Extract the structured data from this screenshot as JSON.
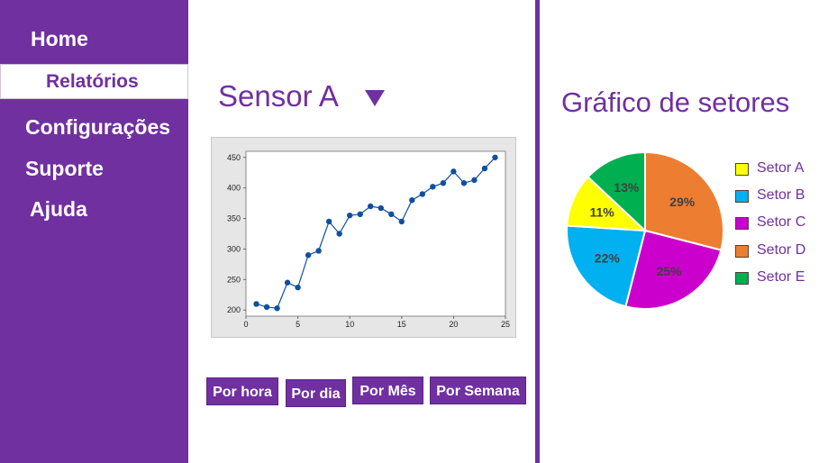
{
  "sidebar": {
    "items": [
      {
        "label": "Home"
      },
      {
        "label": "Relatórios",
        "active": true
      },
      {
        "label": "Configurações"
      },
      {
        "label": "Suporte"
      },
      {
        "label": "Ajuda"
      }
    ],
    "color": "#7030a0"
  },
  "sensor": {
    "title": "Sensor A",
    "dropdown_icon": "triangle-down-icon"
  },
  "period_buttons": [
    "Por hora",
    "Por dia",
    "Por Mês",
    "Por Semana"
  ],
  "pie_section": {
    "title": "Gráfico de setores"
  },
  "chart_data": [
    {
      "type": "line",
      "title": "",
      "xlabel": "",
      "ylabel": "",
      "xlim": [
        0,
        25
      ],
      "ylim": [
        190,
        460
      ],
      "xticks": [
        0,
        5,
        10,
        15,
        20,
        25
      ],
      "yticks": [
        200,
        250,
        300,
        350,
        400,
        450
      ],
      "grid": false,
      "color": "#0f4fa0",
      "x": [
        1,
        2,
        3,
        4,
        5,
        6,
        7,
        8,
        9,
        10,
        11,
        12,
        13,
        14,
        15,
        16,
        17,
        18,
        19,
        20,
        21,
        22,
        23,
        24
      ],
      "y": [
        210,
        205,
        203,
        245,
        237,
        290,
        297,
        345,
        325,
        355,
        357,
        370,
        367,
        357,
        345,
        380,
        390,
        402,
        408,
        427,
        408,
        413,
        432,
        450
      ]
    },
    {
      "type": "pie",
      "title": "",
      "legend_position": "right",
      "slices": [
        {
          "label": "Setor A",
          "value": 11,
          "display": "11%",
          "color": "#ffff00"
        },
        {
          "label": "Setor B",
          "value": 22,
          "display": "22%",
          "color": "#00b0f0"
        },
        {
          "label": "Setor C",
          "value": 25,
          "display": "25%",
          "color": "#cc00cc"
        },
        {
          "label": "Setor D",
          "value": 29,
          "display": "29%",
          "color": "#ed7d31"
        },
        {
          "label": "Setor E",
          "value": 13,
          "display": "13%",
          "color": "#00b050"
        }
      ],
      "draw_order": [
        "Setor D",
        "Setor C",
        "Setor B",
        "Setor A",
        "Setor E"
      ]
    }
  ]
}
